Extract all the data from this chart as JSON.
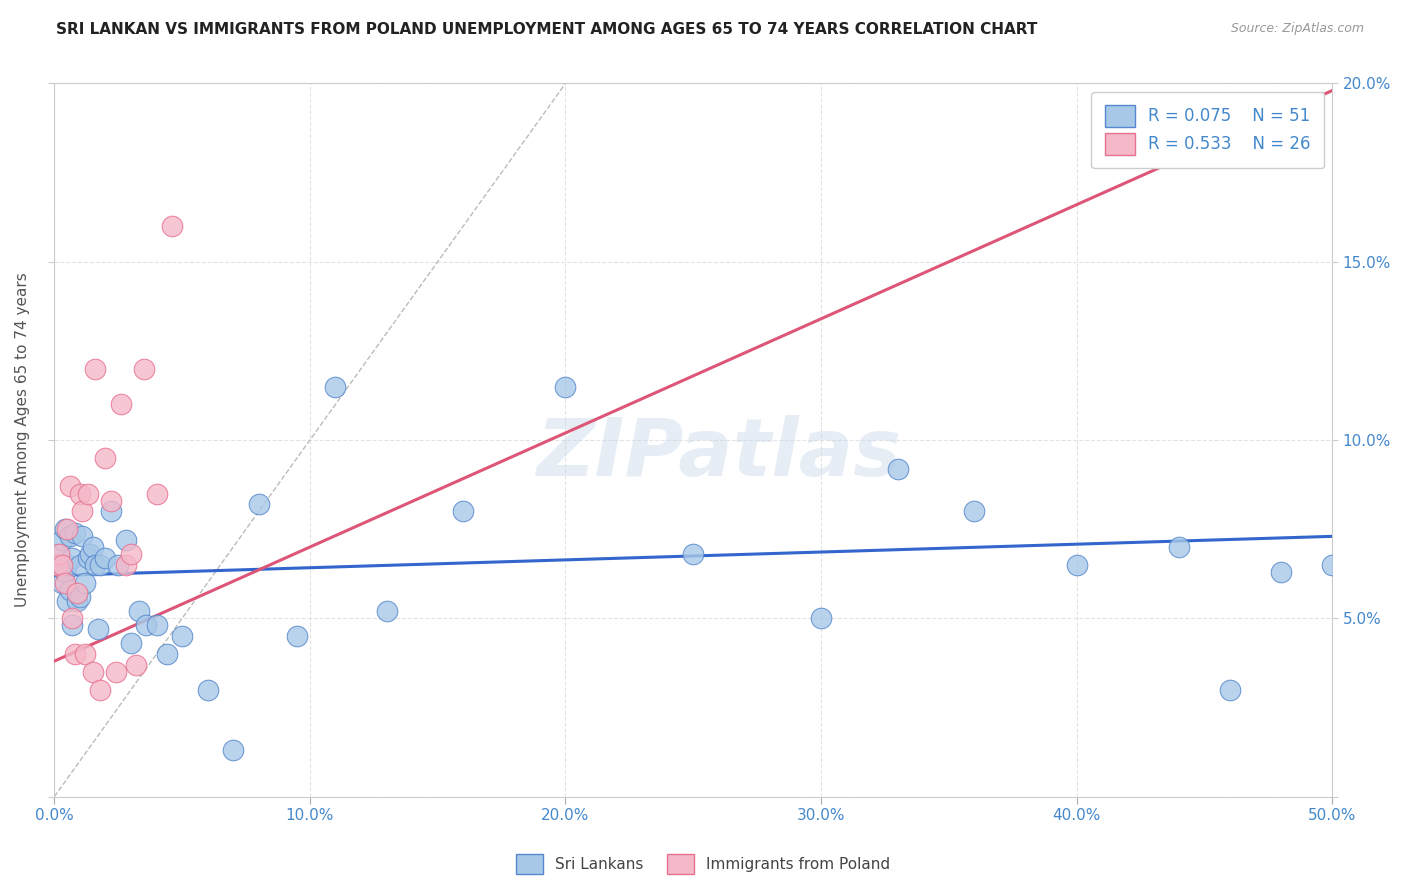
{
  "title": "SRI LANKAN VS IMMIGRANTS FROM POLAND UNEMPLOYMENT AMONG AGES 65 TO 74 YEARS CORRELATION CHART",
  "source": "Source: ZipAtlas.com",
  "ylabel": "Unemployment Among Ages 65 to 74 years",
  "xlim": [
    0,
    0.5
  ],
  "ylim": [
    0,
    0.2
  ],
  "xticks": [
    0.0,
    0.1,
    0.2,
    0.3,
    0.4,
    0.5
  ],
  "xticklabels": [
    "0.0%",
    "10.0%",
    "20.0%",
    "30.0%",
    "40.0%",
    "50.0%"
  ],
  "yticks": [
    0.0,
    0.05,
    0.1,
    0.15,
    0.2
  ],
  "yticklabels_right": [
    "",
    "5.0%",
    "10.0%",
    "15.0%",
    "20.0%"
  ],
  "legend_r1": "R = 0.075",
  "legend_n1": "N = 51",
  "legend_r2": "R = 0.533",
  "legend_n2": "N = 26",
  "color_blue_fill": "#a8c8e8",
  "color_pink_fill": "#f4b8c8",
  "color_blue_edge": "#5588cc",
  "color_pink_edge": "#e87090",
  "color_blue_line": "#3366cc",
  "color_pink_line": "#dd5577",
  "color_diag_line": "#bbbbbb",
  "color_title": "#222222",
  "color_axis": "#4488cc",
  "color_ylabel": "#555555",
  "watermark": "ZIPatlas",
  "sri_lankans_x": [
    0.001,
    0.002,
    0.003,
    0.003,
    0.004,
    0.004,
    0.005,
    0.005,
    0.006,
    0.006,
    0.007,
    0.007,
    0.008,
    0.009,
    0.01,
    0.01,
    0.011,
    0.012,
    0.013,
    0.014,
    0.015,
    0.016,
    0.017,
    0.018,
    0.02,
    0.022,
    0.025,
    0.028,
    0.03,
    0.033,
    0.036,
    0.04,
    0.044,
    0.05,
    0.06,
    0.07,
    0.08,
    0.095,
    0.11,
    0.13,
    0.16,
    0.2,
    0.25,
    0.3,
    0.33,
    0.36,
    0.4,
    0.44,
    0.46,
    0.48,
    0.5
  ],
  "sri_lankans_y": [
    0.068,
    0.065,
    0.072,
    0.06,
    0.075,
    0.063,
    0.065,
    0.055,
    0.073,
    0.058,
    0.067,
    0.048,
    0.074,
    0.055,
    0.065,
    0.056,
    0.073,
    0.06,
    0.067,
    0.068,
    0.07,
    0.065,
    0.047,
    0.065,
    0.067,
    0.08,
    0.065,
    0.072,
    0.043,
    0.052,
    0.048,
    0.048,
    0.04,
    0.045,
    0.03,
    0.013,
    0.082,
    0.045,
    0.115,
    0.052,
    0.08,
    0.115,
    0.068,
    0.05,
    0.092,
    0.08,
    0.065,
    0.07,
    0.03,
    0.063,
    0.065
  ],
  "poland_x": [
    0.001,
    0.002,
    0.003,
    0.004,
    0.005,
    0.006,
    0.007,
    0.008,
    0.009,
    0.01,
    0.011,
    0.012,
    0.013,
    0.015,
    0.016,
    0.018,
    0.02,
    0.022,
    0.024,
    0.026,
    0.028,
    0.03,
    0.032,
    0.035,
    0.04,
    0.046
  ],
  "poland_y": [
    0.065,
    0.068,
    0.065,
    0.06,
    0.075,
    0.087,
    0.05,
    0.04,
    0.057,
    0.085,
    0.08,
    0.04,
    0.085,
    0.035,
    0.12,
    0.03,
    0.095,
    0.083,
    0.035,
    0.11,
    0.065,
    0.068,
    0.037,
    0.12,
    0.085,
    0.16
  ],
  "blue_line_x": [
    0.0,
    0.5
  ],
  "blue_line_y": [
    0.062,
    0.073
  ],
  "pink_line_x": [
    0.0,
    0.5
  ],
  "pink_line_y": [
    0.038,
    0.198
  ],
  "diag_line_x": [
    0.0,
    0.2
  ],
  "diag_line_y": [
    0.0,
    0.2
  ]
}
